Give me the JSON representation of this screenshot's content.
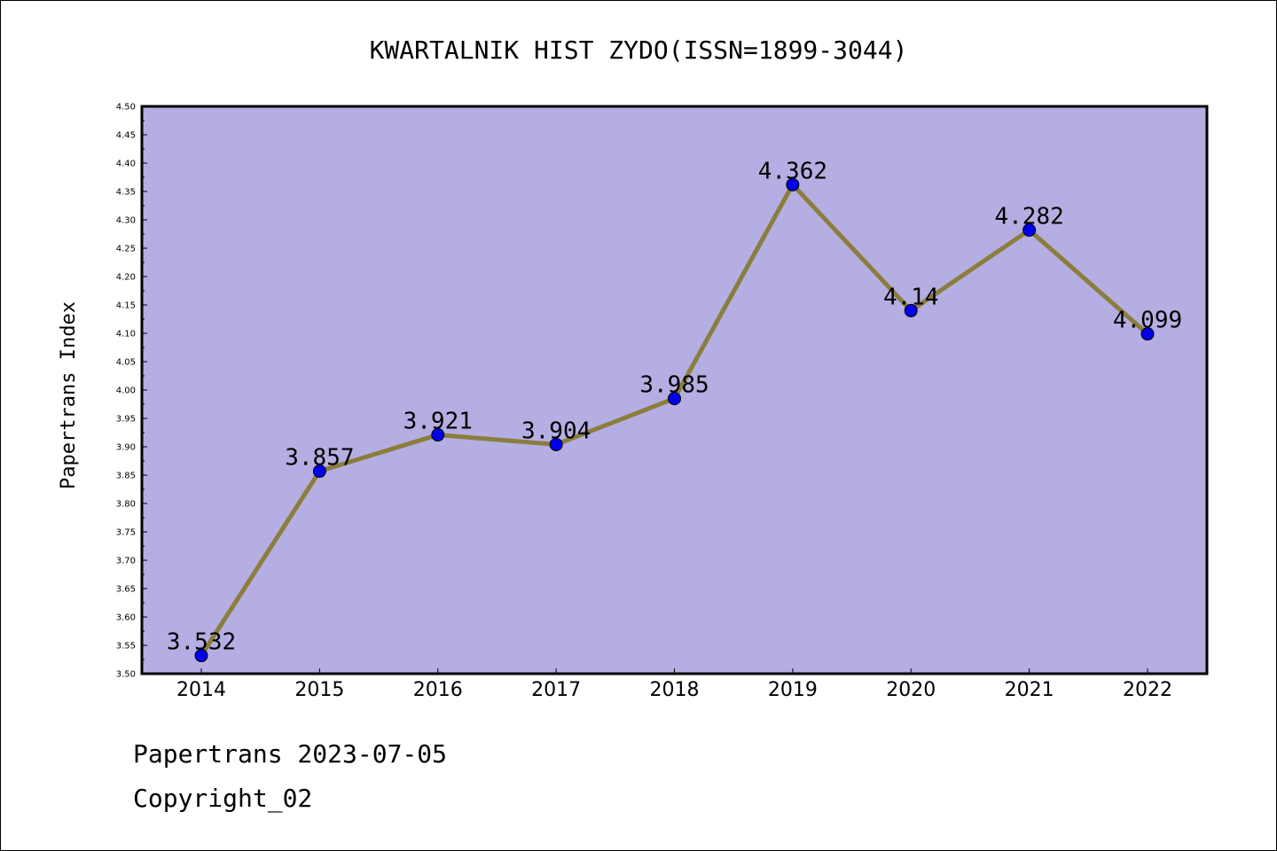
{
  "chart_data": {
    "type": "line",
    "title": "KWARTALNIK HIST ZYDO(ISSN=1899-3044)",
    "xlabel": "",
    "ylabel": "Papertrans Index",
    "categories": [
      "2014",
      "2015",
      "2016",
      "2017",
      "2018",
      "2019",
      "2020",
      "2021",
      "2022"
    ],
    "series": [
      {
        "values": [
          3.532,
          3.857,
          3.921,
          3.904,
          3.985,
          4.362,
          4.14,
          4.282,
          4.099
        ],
        "labels": [
          "3.532",
          "3.857",
          "3.921",
          "3.904",
          "3.985",
          "4.362",
          "4.14",
          "4.282",
          "4.099"
        ]
      }
    ],
    "ylim": [
      3.5,
      4.5
    ],
    "yticks": [
      "3.50",
      "3.55",
      "3.60",
      "3.65",
      "3.70",
      "3.75",
      "3.80",
      "3.85",
      "3.90",
      "3.95",
      "4.00",
      "4.05",
      "4.10",
      "4.15",
      "4.20",
      "4.25",
      "4.30",
      "4.35",
      "4.40",
      "4.45",
      "4.50"
    ],
    "grid": false,
    "legend": "none",
    "colors": {
      "plot_background": "#b5aee2",
      "line": "#8b7d3c",
      "marker": "#0000ee"
    }
  },
  "footer": {
    "source": "Papertrans 2023-07-05",
    "copyright": "Copyright_02"
  }
}
